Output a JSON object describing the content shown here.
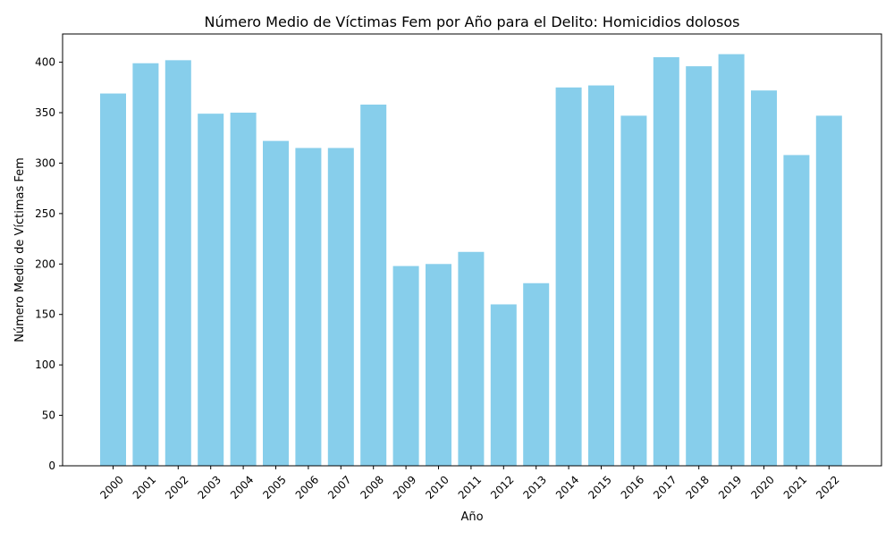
{
  "colors": {
    "bar": "#87ceeb",
    "axis": "#000000",
    "background": "#ffffff"
  },
  "chart_data": {
    "type": "bar",
    "title": "Número Medio de Víctimas Fem por Año para el Delito: Homicidios dolosos",
    "xlabel": "Año",
    "ylabel": "Número Medio de Víctimas Fem",
    "categories": [
      "2000",
      "2001",
      "2002",
      "2003",
      "2004",
      "2005",
      "2006",
      "2007",
      "2008",
      "2009",
      "2010",
      "2011",
      "2012",
      "2013",
      "2014",
      "2015",
      "2016",
      "2017",
      "2018",
      "2019",
      "2020",
      "2021",
      "2022"
    ],
    "values": [
      369,
      399,
      402,
      349,
      350,
      322,
      315,
      315,
      358,
      198,
      200,
      212,
      160,
      181,
      375,
      377,
      347,
      405,
      396,
      408,
      372,
      308,
      347
    ],
    "ylim": [
      0,
      428
    ],
    "yticks": [
      0,
      50,
      100,
      150,
      200,
      250,
      300,
      350,
      400
    ],
    "grid": false,
    "legend": "none"
  }
}
